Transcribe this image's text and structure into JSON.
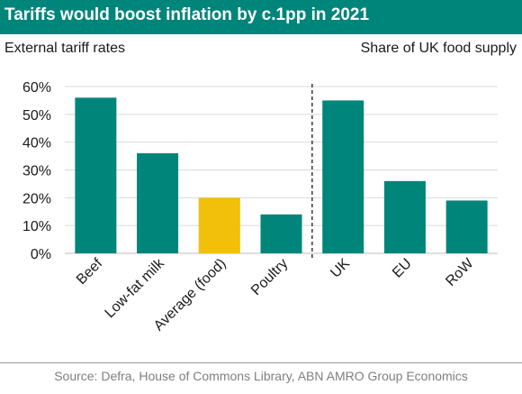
{
  "title": "Tariffs would boost inflation by c.1pp in 2021",
  "subtitle_left": "External tariff rates",
  "subtitle_right": "Share of UK food supply",
  "source": "Source: Defra, House of Commons Library, ABN AMRO Group Economics",
  "colors": {
    "title_bg": "#00857a",
    "bar": "#00857a",
    "highlight": "#f2bf0a",
    "grid": "#d9d9d9",
    "divider": "#1a1a1a"
  },
  "chart_data": {
    "type": "bar",
    "categories": [
      "Beef",
      "Low-fat milk",
      "Average (food)",
      "Poultry",
      "UK",
      "EU",
      "RoW"
    ],
    "values": [
      56,
      36,
      20,
      14,
      55,
      26,
      19
    ],
    "highlight_category": "Average (food)",
    "divider_between": [
      "Poultry",
      "UK"
    ],
    "ylim": [
      0,
      60
    ],
    "yticks": [
      "0%",
      "10%",
      "20%",
      "30%",
      "40%",
      "50%",
      "60%"
    ],
    "grid": true,
    "xlabel": "",
    "ylabel": ""
  }
}
